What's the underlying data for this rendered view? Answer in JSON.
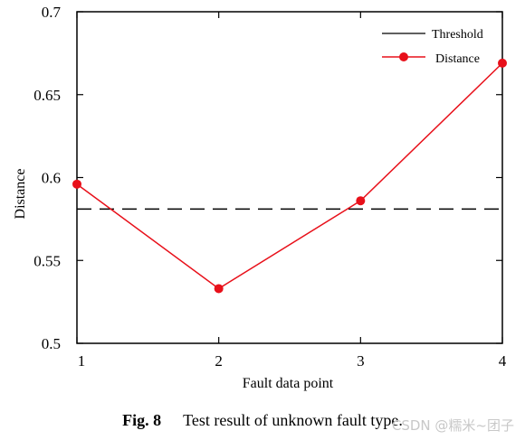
{
  "chart_data": {
    "type": "line",
    "x": [
      1,
      2,
      3,
      4
    ],
    "xlabel": "Fault data point",
    "ylabel": "Distance",
    "xlim": [
      1,
      4
    ],
    "ylim": [
      0.5,
      0.7
    ],
    "x_ticks": [
      "1",
      "2",
      "3",
      "4"
    ],
    "y_ticks": [
      "0.5",
      "0.55",
      "0.6",
      "0.65",
      "0.7"
    ],
    "grid": false,
    "legend_position": "top-right",
    "series": [
      {
        "name": "Distance",
        "values": [
          0.596,
          0.533,
          0.586,
          0.669
        ],
        "color": "#e8101a",
        "style": "solid",
        "marker": "circle"
      }
    ],
    "reference_lines": [
      {
        "name": "Threshold",
        "value": 0.581,
        "color": "#000000",
        "style": "dashed"
      }
    ]
  },
  "caption": {
    "label": "Fig. 8",
    "text": "Test result of unknown fault type."
  },
  "watermark": "CSDN @糯米~团子"
}
